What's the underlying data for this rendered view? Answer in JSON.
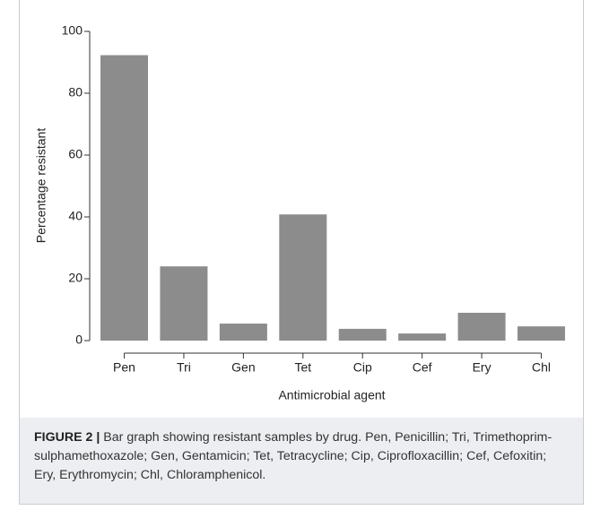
{
  "chart_data": {
    "type": "bar",
    "categories": [
      "Pen",
      "Tri",
      "Gen",
      "Tet",
      "Cip",
      "Cef",
      "Ery",
      "Chl"
    ],
    "values": [
      92.3,
      24,
      5.5,
      40.8,
      3.8,
      2.3,
      9,
      4.6
    ],
    "color": "#8c8c8c",
    "ylim": [
      0,
      100
    ],
    "yticks": [
      0,
      20,
      40,
      60,
      80,
      100
    ],
    "ylabel": "Percentage resistant",
    "xlabel": "Antimicrobial agent",
    "grid": false
  },
  "caption": {
    "label": "FIGURE 2 |",
    "text": "Bar graph showing resistant samples by drug. Pen, Penicillin; Tri, Trimethoprim-sulphamethoxazole; Gen, Gentamicin; Tet, Tetracycline; Cip, Ciprofloxacillin; Cef, Cefoxitin; Ery, Erythromycin; Chl, Chloramphenicol."
  }
}
